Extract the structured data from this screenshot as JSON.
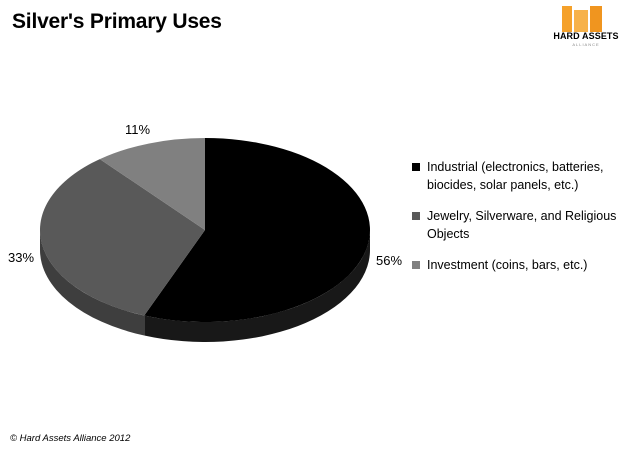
{
  "chart_data": {
    "type": "pie",
    "title": "Silver's Primary Uses",
    "categories": [
      "Industrial (electronics, batteries, biocides, solar panels, etc.)",
      "Jewelry, Silverware, and Religious Objects",
      "Investment (coins, bars, etc.)"
    ],
    "values": [
      56,
      33,
      11
    ],
    "data_labels": [
      "56%",
      "33%",
      "11%"
    ],
    "colors": [
      "#000000",
      "#595959",
      "#808080"
    ],
    "legend_position": "right",
    "style": "3d-pie"
  },
  "logo": {
    "text": "HARD ASSETS",
    "subtext": "ALLIANCE"
  },
  "footer": "© Hard Assets Alliance 2012"
}
